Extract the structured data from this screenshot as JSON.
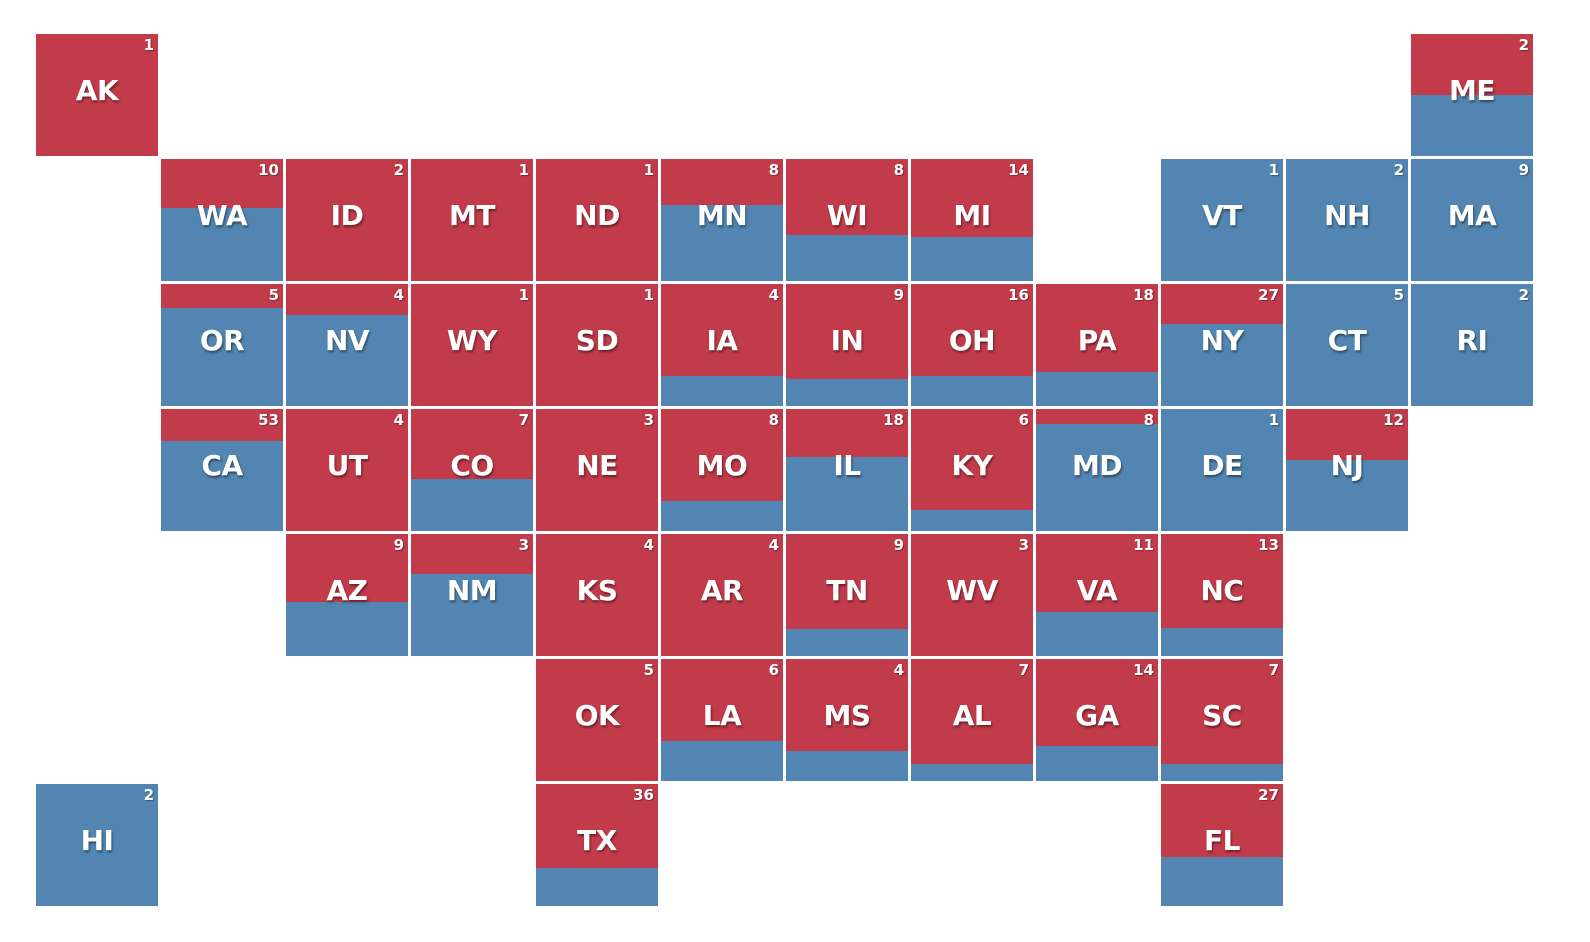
{
  "chart_data": {
    "type": "tile-map",
    "colors": {
      "republican": "#c23b4a",
      "democrat": "#5285b1"
    },
    "value_meaning": "share of tile colored red (0-1); number = seat count",
    "tiles": [
      {
        "state": "AK",
        "seats": "1",
        "row": 0,
        "col": 0,
        "red_share": 1.0
      },
      {
        "state": "ME",
        "seats": "2",
        "row": 0,
        "col": 11,
        "red_share": 0.5
      },
      {
        "state": "WA",
        "seats": "10",
        "row": 1,
        "col": 1,
        "red_share": 0.4
      },
      {
        "state": "ID",
        "seats": "2",
        "row": 1,
        "col": 2,
        "red_share": 1.0
      },
      {
        "state": "MT",
        "seats": "1",
        "row": 1,
        "col": 3,
        "red_share": 1.0
      },
      {
        "state": "ND",
        "seats": "1",
        "row": 1,
        "col": 4,
        "red_share": 1.0
      },
      {
        "state": "MN",
        "seats": "8",
        "row": 1,
        "col": 5,
        "red_share": 0.375
      },
      {
        "state": "WI",
        "seats": "8",
        "row": 1,
        "col": 6,
        "red_share": 0.625
      },
      {
        "state": "MI",
        "seats": "14",
        "row": 1,
        "col": 7,
        "red_share": 0.64
      },
      {
        "state": "VT",
        "seats": "1",
        "row": 1,
        "col": 9,
        "red_share": 0.0
      },
      {
        "state": "NH",
        "seats": "2",
        "row": 1,
        "col": 10,
        "red_share": 0.0
      },
      {
        "state": "MA",
        "seats": "9",
        "row": 1,
        "col": 11,
        "red_share": 0.0
      },
      {
        "state": "OR",
        "seats": "5",
        "row": 2,
        "col": 1,
        "red_share": 0.2
      },
      {
        "state": "NV",
        "seats": "4",
        "row": 2,
        "col": 2,
        "red_share": 0.25
      },
      {
        "state": "WY",
        "seats": "1",
        "row": 2,
        "col": 3,
        "red_share": 1.0
      },
      {
        "state": "SD",
        "seats": "1",
        "row": 2,
        "col": 4,
        "red_share": 1.0
      },
      {
        "state": "IA",
        "seats": "4",
        "row": 2,
        "col": 5,
        "red_share": 0.75
      },
      {
        "state": "IN",
        "seats": "9",
        "row": 2,
        "col": 6,
        "red_share": 0.78
      },
      {
        "state": "OH",
        "seats": "16",
        "row": 2,
        "col": 7,
        "red_share": 0.75
      },
      {
        "state": "PA",
        "seats": "18",
        "row": 2,
        "col": 8,
        "red_share": 0.72
      },
      {
        "state": "NY",
        "seats": "27",
        "row": 2,
        "col": 9,
        "red_share": 0.33
      },
      {
        "state": "CT",
        "seats": "5",
        "row": 2,
        "col": 10,
        "red_share": 0.0
      },
      {
        "state": "RI",
        "seats": "2",
        "row": 2,
        "col": 11,
        "red_share": 0.0
      },
      {
        "state": "CA",
        "seats": "53",
        "row": 3,
        "col": 1,
        "red_share": 0.26
      },
      {
        "state": "UT",
        "seats": "4",
        "row": 3,
        "col": 2,
        "red_share": 1.0
      },
      {
        "state": "CO",
        "seats": "7",
        "row": 3,
        "col": 3,
        "red_share": 0.57
      },
      {
        "state": "NE",
        "seats": "3",
        "row": 3,
        "col": 4,
        "red_share": 1.0
      },
      {
        "state": "MO",
        "seats": "8",
        "row": 3,
        "col": 5,
        "red_share": 0.75
      },
      {
        "state": "IL",
        "seats": "18",
        "row": 3,
        "col": 6,
        "red_share": 0.39
      },
      {
        "state": "KY",
        "seats": "6",
        "row": 3,
        "col": 7,
        "red_share": 0.83
      },
      {
        "state": "MD",
        "seats": "8",
        "row": 3,
        "col": 8,
        "red_share": 0.125
      },
      {
        "state": "DE",
        "seats": "1",
        "row": 3,
        "col": 9,
        "red_share": 0.0
      },
      {
        "state": "NJ",
        "seats": "12",
        "row": 3,
        "col": 10,
        "red_share": 0.42
      },
      {
        "state": "AZ",
        "seats": "9",
        "row": 4,
        "col": 2,
        "red_share": 0.56
      },
      {
        "state": "NM",
        "seats": "3",
        "row": 4,
        "col": 3,
        "red_share": 0.33
      },
      {
        "state": "KS",
        "seats": "4",
        "row": 4,
        "col": 4,
        "red_share": 1.0
      },
      {
        "state": "AR",
        "seats": "4",
        "row": 4,
        "col": 5,
        "red_share": 1.0
      },
      {
        "state": "TN",
        "seats": "9",
        "row": 4,
        "col": 6,
        "red_share": 0.78
      },
      {
        "state": "WV",
        "seats": "3",
        "row": 4,
        "col": 7,
        "red_share": 1.0
      },
      {
        "state": "VA",
        "seats": "11",
        "row": 4,
        "col": 8,
        "red_share": 0.64
      },
      {
        "state": "NC",
        "seats": "13",
        "row": 4,
        "col": 9,
        "red_share": 0.77
      },
      {
        "state": "OK",
        "seats": "5",
        "row": 5,
        "col": 4,
        "red_share": 1.0
      },
      {
        "state": "LA",
        "seats": "6",
        "row": 5,
        "col": 5,
        "red_share": 0.67
      },
      {
        "state": "MS",
        "seats": "4",
        "row": 5,
        "col": 6,
        "red_share": 0.75
      },
      {
        "state": "AL",
        "seats": "7",
        "row": 5,
        "col": 7,
        "red_share": 0.86
      },
      {
        "state": "GA",
        "seats": "14",
        "row": 5,
        "col": 8,
        "red_share": 0.71
      },
      {
        "state": "SC",
        "seats": "7",
        "row": 5,
        "col": 9,
        "red_share": 0.86
      },
      {
        "state": "HI",
        "seats": "2",
        "row": 6,
        "col": 0,
        "red_share": 0.0
      },
      {
        "state": "TX",
        "seats": "36",
        "row": 6,
        "col": 4,
        "red_share": 0.69
      },
      {
        "state": "FL",
        "seats": "27",
        "row": 6,
        "col": 9,
        "red_share": 0.6
      }
    ]
  }
}
